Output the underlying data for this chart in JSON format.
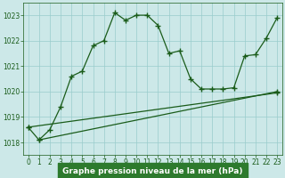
{
  "xlabel": "Graphe pression niveau de la mer (hPa)",
  "ylim": [
    1017.5,
    1023.5
  ],
  "xlim": [
    -0.5,
    23.5
  ],
  "yticks": [
    1018,
    1019,
    1020,
    1021,
    1022,
    1023
  ],
  "xticks": [
    0,
    1,
    2,
    3,
    4,
    5,
    6,
    7,
    8,
    9,
    10,
    11,
    12,
    13,
    14,
    15,
    16,
    17,
    18,
    19,
    20,
    21,
    22,
    23
  ],
  "line1_x": [
    0,
    1,
    2,
    3,
    4,
    5,
    6,
    7,
    8,
    9,
    10,
    11,
    12,
    13,
    14,
    15,
    16,
    17,
    18,
    19,
    20,
    21,
    22,
    23
  ],
  "line1_y": [
    1018.6,
    1018.1,
    1018.5,
    1019.4,
    1020.6,
    1020.8,
    1021.8,
    1022.0,
    1023.1,
    1022.8,
    1023.0,
    1023.0,
    1022.6,
    1021.5,
    1021.6,
    1020.5,
    1020.1,
    1020.1,
    1020.1,
    1020.15,
    1021.4,
    1021.45,
    1022.1,
    1022.9
  ],
  "line2_x": [
    1,
    23
  ],
  "line2_y": [
    1018.1,
    1020.0
  ],
  "line3_x": [
    0,
    23
  ],
  "line3_y": [
    1018.6,
    1019.95
  ],
  "bg_color": "#cce8e8",
  "grid_color": "#99cccc",
  "line_color": "#1a5c1a",
  "marker": "+",
  "markersize": 4,
  "linewidth": 0.9,
  "tick_fontsize": 5.5,
  "label_fontsize": 6.5,
  "label_fontweight": "bold"
}
